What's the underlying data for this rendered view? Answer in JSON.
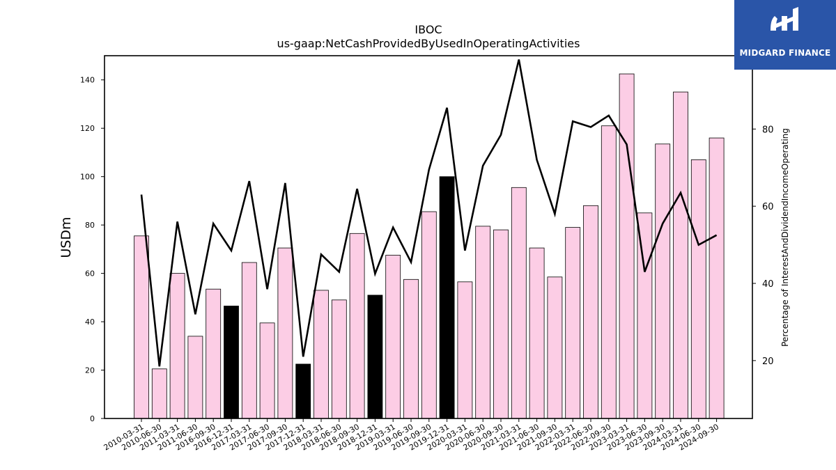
{
  "chart_data": {
    "type": "bar",
    "title": "IBOC",
    "subtitle": "us-gaap:NetCashProvidedByUsedInOperatingActivities",
    "ylabel": "USDm",
    "y2label": "Percentage of InterestAndDividendIncomeOperating",
    "ylim": [
      0,
      150
    ],
    "y2lim": [
      5,
      99
    ],
    "yticks": [
      0,
      20,
      40,
      60,
      80,
      100,
      120,
      140
    ],
    "y2ticks": [
      20,
      40,
      60,
      80
    ],
    "grid": false,
    "categories": [
      "2010-03-31",
      "2010-06-30",
      "2011-03-31",
      "2011-06-30",
      "2016-09-30",
      "2016-12-31",
      "2017-03-31",
      "2017-06-30",
      "2017-09-30",
      "2017-12-31",
      "2018-03-31",
      "2018-06-30",
      "2018-09-30",
      "2018-12-31",
      "2019-03-31",
      "2019-06-30",
      "2019-09-30",
      "2019-12-31",
      "2020-03-31",
      "2020-06-30",
      "2020-09-30",
      "2021-03-31",
      "2021-06-30",
      "2021-09-30",
      "2022-03-31",
      "2022-06-30",
      "2022-09-30",
      "2023-03-31",
      "2023-06-30",
      "2023-09-30",
      "2024-03-31",
      "2024-06-30",
      "2024-09-30"
    ],
    "series": [
      {
        "type": "bar",
        "axis": "left",
        "values": [
          75.5,
          20.5,
          60,
          34,
          53.5,
          46.5,
          64.5,
          39.5,
          70.5,
          22.5,
          53,
          49,
          76.5,
          51,
          67.5,
          57.5,
          85.5,
          100,
          56.5,
          79.5,
          78,
          95.5,
          70.5,
          58.5,
          79,
          88,
          121,
          142.5,
          85,
          113.5,
          135,
          107,
          116
        ],
        "highlight_indices": [
          5,
          9,
          13,
          17
        ],
        "color": "#fccde5",
        "highlight_color": "#000000",
        "edge_color": "#000000"
      },
      {
        "type": "line",
        "axis": "right",
        "values": [
          63,
          18.5,
          56,
          32,
          55.5,
          48.5,
          66.5,
          38.5,
          66,
          21,
          47.5,
          43,
          64.5,
          42.5,
          54.5,
          45.5,
          69.5,
          85.5,
          48.5,
          70.5,
          78.5,
          98,
          72,
          58,
          82,
          80.5,
          83.5,
          76,
          43,
          55.5,
          63.5,
          50,
          52.5
        ],
        "color": "#000000"
      }
    ]
  },
  "logo": {
    "text": "MIDGARD FINANCE",
    "background": "#2a55a8"
  }
}
